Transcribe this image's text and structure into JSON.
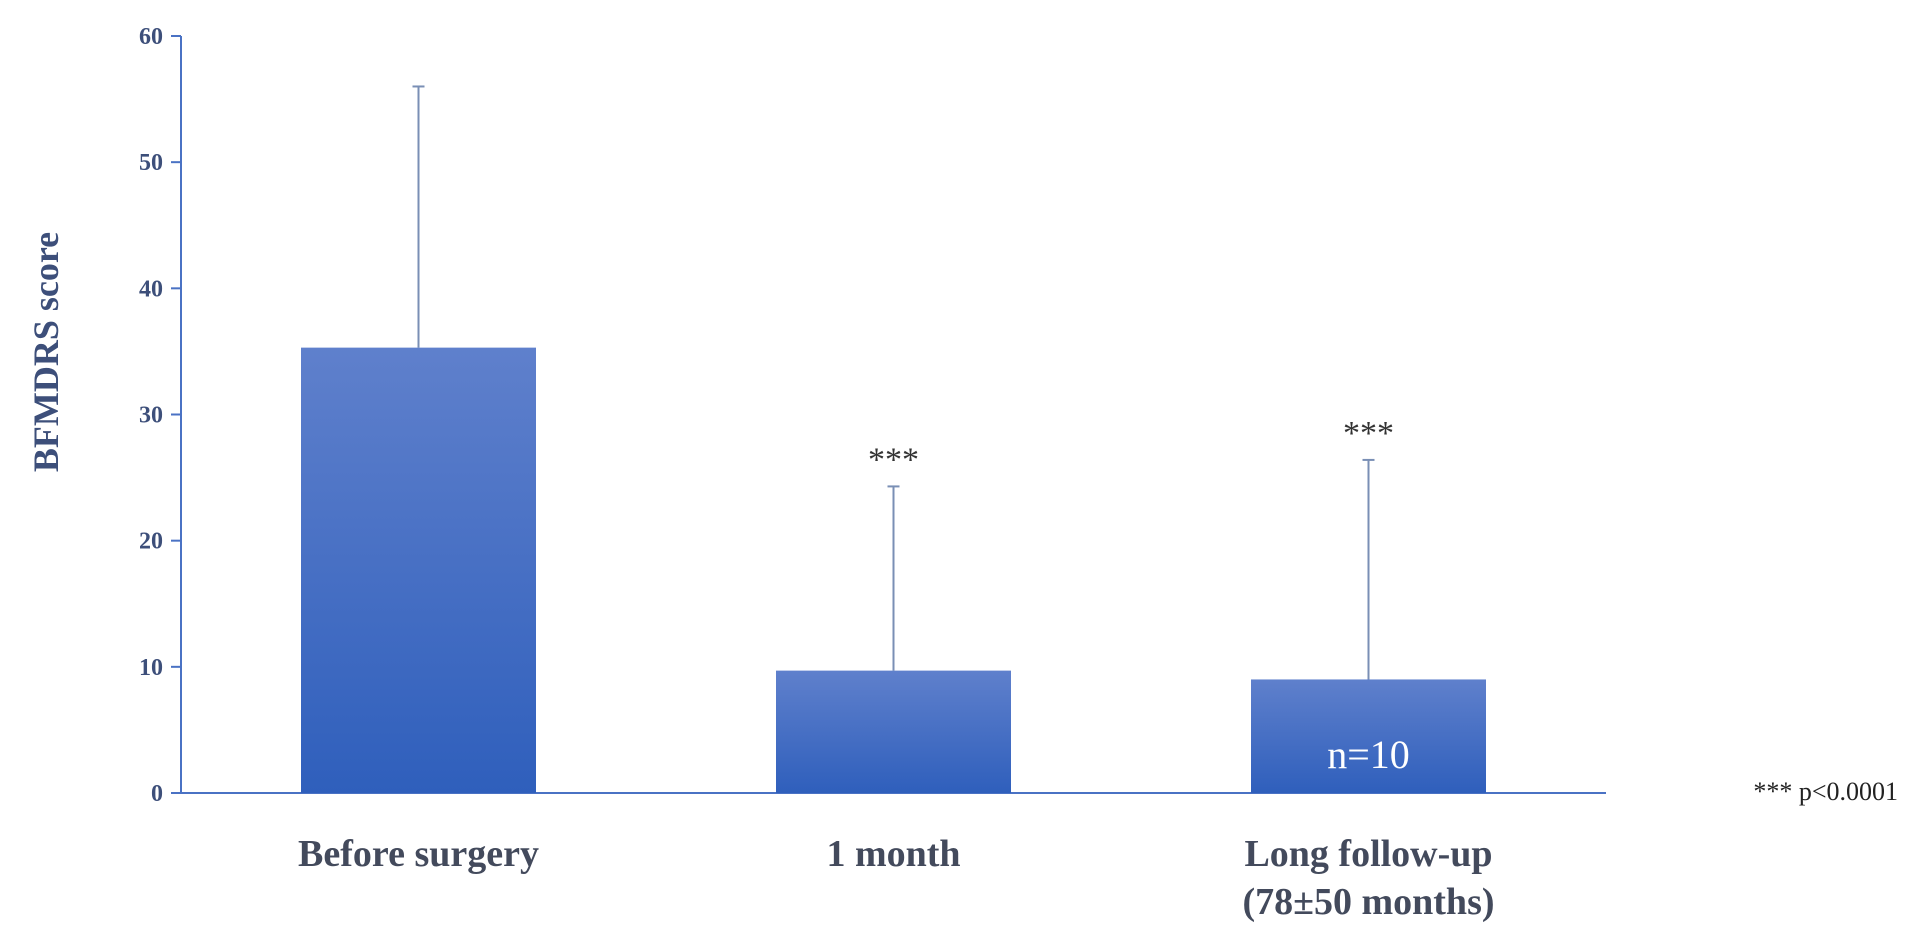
{
  "chart_data": {
    "type": "bar",
    "title": "",
    "xlabel": "",
    "ylabel": "BFMDRS score",
    "ylim": [
      0,
      60
    ],
    "yticks": [
      0,
      10,
      20,
      30,
      40,
      50,
      60
    ],
    "grid": false,
    "categories": [
      "Before surgery",
      "1 month",
      "Long follow-up\n(78±50 months)"
    ],
    "values": [
      35.3,
      9.7,
      9.0
    ],
    "error_upper": [
      56.0,
      24.3,
      26.4
    ],
    "significance": [
      "",
      "***",
      "***"
    ],
    "bar_annotations": [
      "",
      "",
      "n=10"
    ],
    "footnote": "*** p<0.0001",
    "colors": {
      "bar_top": "#5f80cc",
      "bar_bottom": "#2f5fbc",
      "axis": "#4a72c4",
      "error_bar": "#7a8fb5"
    }
  }
}
